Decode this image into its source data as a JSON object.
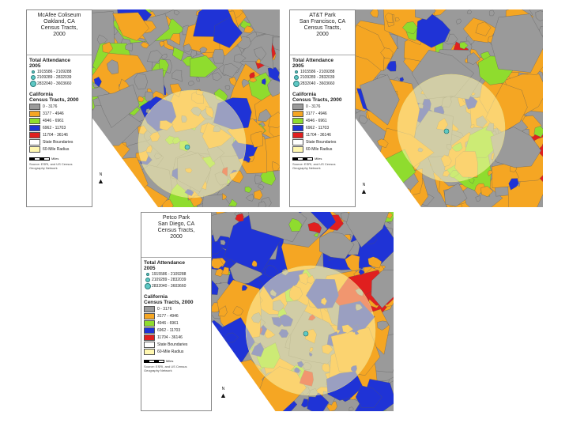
{
  "palette": {
    "tract_0": "#9a9a9a",
    "tract_1": "#f5a623",
    "tract_2": "#8fdc2e",
    "tract_3": "#1f33d6",
    "tract_4": "#e01f1f",
    "buffer": "#fff7b0",
    "stadium": "#5ec8c4"
  },
  "panels": [
    {
      "title": "McAfee Coliseum\nOakland, CA\nCensus Tracts,\n2000",
      "attendance_heading": "Total Attendance\n2005",
      "attendance": [
        "1915586 - 2109288",
        "2109289 - 2832039",
        "2832040 - 3603660"
      ],
      "california_heading": "California\nCensus Tracts, 2000",
      "tracts": [
        "0 - 3176",
        "3177 - 4946",
        "4946 - 6961",
        "6962 - 11703",
        "11704 - 36146"
      ],
      "extra": [
        "State Boundaries",
        "60-Mile Radius"
      ],
      "scale_label": "Miles",
      "source": "Source: ESRI, and US Census\nGeography Network"
    },
    {
      "title": "AT&T Park\nSan Francisco, CA\nCensus Tracts,\n2000",
      "attendance_heading": "Total Attendance\n2005",
      "attendance": [
        "1915586 - 2109288",
        "2109289 - 2832039",
        "2832040 - 3603660"
      ],
      "california_heading": "California\nCensus Tracts, 2000",
      "tracts": [
        "0 - 3176",
        "3177 - 4946",
        "4946 - 6961",
        "6962 - 11703",
        "11704 - 36146"
      ],
      "extra": [
        "State Boundaries",
        "60-Mile Radius"
      ],
      "scale_label": "Miles",
      "source": "Source: ESRI, and US Census\nGeography Network"
    },
    {
      "title": "Petco Park\nSan Diego, CA\nCensus Tracts,\n2000",
      "attendance_heading": "Total Attendance\n2005",
      "attendance": [
        "1915586 - 2109288",
        "2109289 - 2832039",
        "2832040 - 3603660"
      ],
      "california_heading": "California\nCensus Tracts, 2000",
      "tracts": [
        "0 - 3176",
        "3177 - 4946",
        "4946 - 6961",
        "6962 - 11703",
        "11704 - 36146"
      ],
      "extra": [
        "State Boundaries",
        "60-Mile Radius"
      ],
      "scale_label": "Miles",
      "source": "Source: ESRI, and US Census\nGeography Network"
    }
  ],
  "north_label": "N"
}
